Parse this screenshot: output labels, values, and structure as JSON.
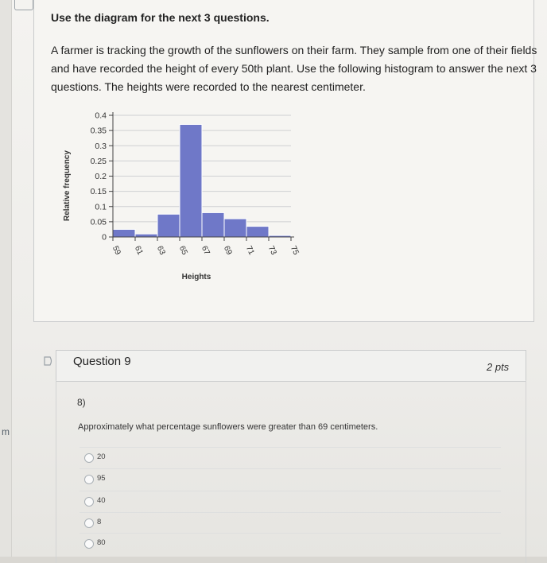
{
  "sidebar": {
    "fragment": "m"
  },
  "stimulus": {
    "title": "Use the diagram for the next 3 questions.",
    "text": "A farmer is tracking the growth of the sunflowers on their farm. They sample from one of their fields and have recorded the height of every 50th plant. Use the following histogram to answer the next 3 questions. The heights were recorded to the nearest centimeter."
  },
  "question": {
    "title": "Question 9",
    "points": "2 pts",
    "number": "8)",
    "prompt": "Approximately what percentage sunflowers were greater than 69 centimeters.",
    "answers": [
      "20",
      "95",
      "40",
      "8",
      "80"
    ]
  },
  "chart_data": {
    "type": "bar",
    "title": "",
    "xlabel": "Heights",
    "ylabel": "Relative frequency",
    "bin_edges": [
      59,
      61,
      63,
      65,
      67,
      69,
      71,
      73,
      75
    ],
    "x_ticks": [
      "59",
      "61",
      "63",
      "65",
      "67",
      "69",
      "71",
      "73",
      "75"
    ],
    "values": [
      0.025,
      0.01,
      0.075,
      0.37,
      0.08,
      0.06,
      0.035,
      0.005
    ],
    "y_ticks": [
      "0",
      "0.05",
      "0.1",
      "0.15",
      "0.2",
      "0.25",
      "0.3",
      "0.35",
      "0.4"
    ],
    "ylim": [
      0,
      0.4
    ],
    "grid": true,
    "bar_color": "#6f78c8",
    "bar_edge_color": "#ffffff"
  }
}
